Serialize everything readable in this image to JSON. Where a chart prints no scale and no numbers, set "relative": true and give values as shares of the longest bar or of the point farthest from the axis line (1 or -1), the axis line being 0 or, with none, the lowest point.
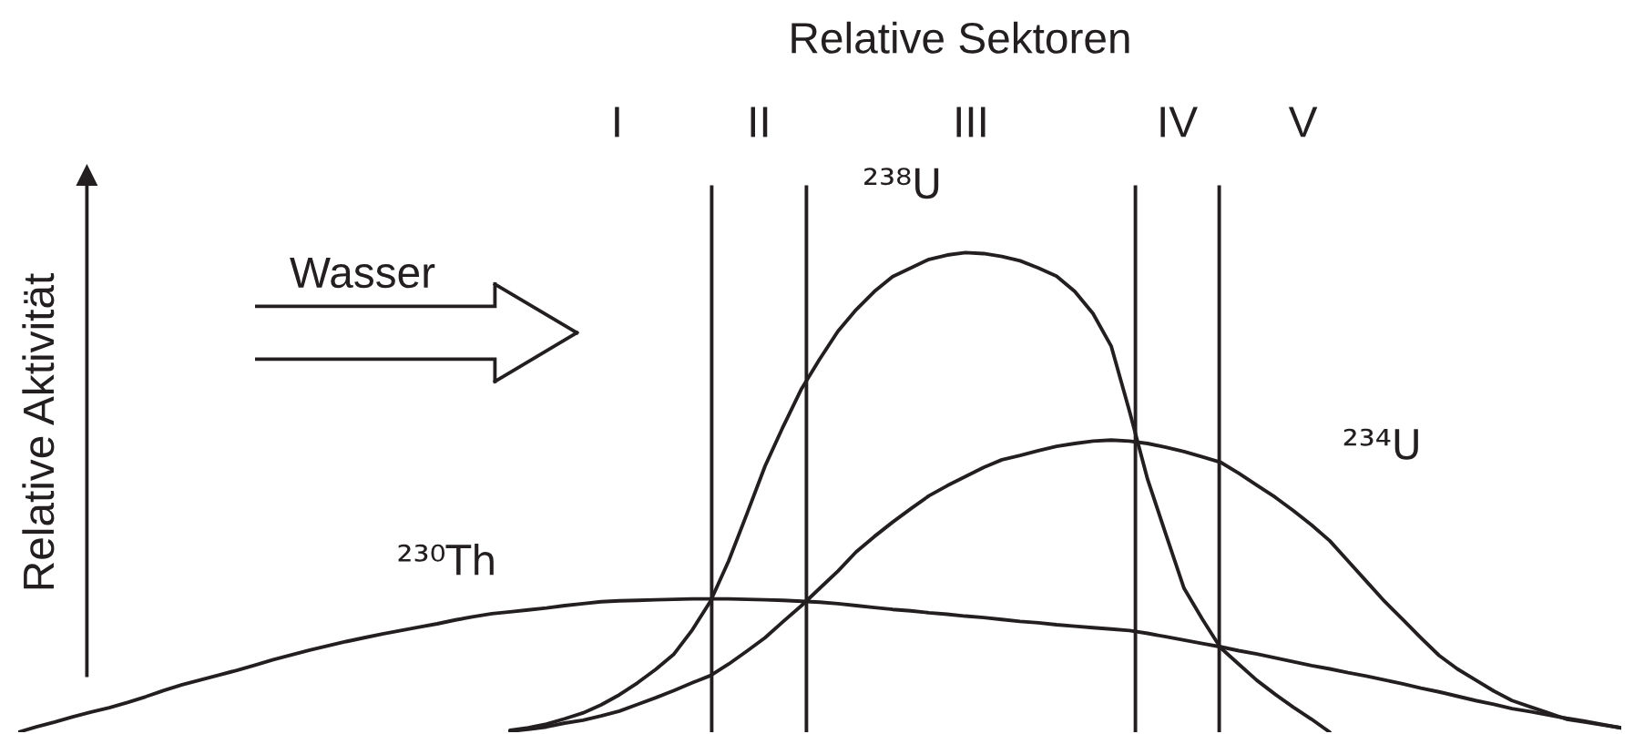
{
  "chart_data": {
    "type": "line",
    "title": "Relative Sektoren",
    "ylabel": "Relative Aktivität",
    "relative": true,
    "categories": [
      null,
      null,
      null,
      null,
      null,
      null,
      null,
      null,
      null,
      null,
      null,
      null,
      null,
      null,
      null,
      null,
      null,
      null,
      null,
      null,
      null,
      null,
      null,
      null,
      null,
      null,
      null,
      null,
      null,
      null,
      null,
      null,
      null,
      null,
      null,
      null,
      null,
      null,
      null,
      null,
      null,
      null,
      null,
      null,
      null,
      null,
      null,
      null,
      null,
      null,
      null,
      null,
      null,
      null,
      null,
      null,
      null,
      null,
      null,
      null,
      null,
      null,
      null,
      null,
      null,
      null,
      null,
      null,
      null,
      null,
      null,
      null,
      null,
      null,
      null,
      null,
      null,
      null,
      null,
      null,
      null,
      null,
      null,
      null,
      null,
      null,
      null,
      null,
      null
    ],
    "series": [
      {
        "name": "²³⁸U",
        "color": "#231f20",
        "values": [
          null,
          null,
          null,
          null,
          null,
          null,
          null,
          null,
          null,
          null,
          null,
          null,
          null,
          null,
          null,
          null,
          null,
          null,
          null,
          null,
          null,
          null,
          null,
          null,
          null,
          null,
          null,
          0.004,
          0.009,
          0.017,
          0.028,
          0.04,
          0.057,
          0.078,
          0.103,
          0.131,
          0.163,
          0.213,
          0.273,
          0.357,
          0.455,
          0.555,
          0.638,
          0.716,
          0.778,
          0.836,
          0.881,
          0.919,
          0.95,
          0.968,
          0.986,
          0.995,
          1.0,
          0.998,
          0.992,
          0.983,
          0.968,
          0.951,
          0.919,
          0.873,
          0.805,
          0.67,
          0.527,
          0.413,
          0.3,
          0.236,
          0.176,
          0.142,
          0.108,
          0.079,
          0.052,
          0.027,
          0.0,
          null,
          null,
          null,
          null,
          null,
          null,
          null,
          null,
          null,
          null,
          null,
          null,
          null,
          null,
          null,
          null
        ]
      },
      {
        "name": "²³⁴U",
        "color": "#231f20",
        "values": [
          null,
          null,
          null,
          null,
          null,
          null,
          null,
          null,
          null,
          null,
          null,
          null,
          null,
          null,
          null,
          null,
          null,
          null,
          null,
          null,
          null,
          null,
          null,
          null,
          null,
          null,
          null,
          0.002,
          0.006,
          0.011,
          0.019,
          0.025,
          0.034,
          0.044,
          0.058,
          0.072,
          0.087,
          0.103,
          0.118,
          0.142,
          0.169,
          0.197,
          0.231,
          0.264,
          0.3,
          0.336,
          0.376,
          0.408,
          0.438,
          0.466,
          0.493,
          0.514,
          0.533,
          0.552,
          0.568,
          0.577,
          0.587,
          0.596,
          0.602,
          0.607,
          0.609,
          0.607,
          0.602,
          0.594,
          0.585,
          0.574,
          0.563,
          0.54,
          0.515,
          0.49,
          0.462,
          0.432,
          0.399,
          0.357,
          0.315,
          0.273,
          0.235,
          0.197,
          0.16,
          0.132,
          0.109,
          0.086,
          0.066,
          0.053,
          0.04,
          0.027,
          0.021,
          0.015,
          0.009
        ]
      },
      {
        "name": "²³⁰Th",
        "color": "#231f20",
        "values": [
          0.0,
          0.011,
          0.021,
          0.032,
          0.042,
          0.051,
          0.062,
          0.074,
          0.087,
          0.099,
          0.109,
          0.119,
          0.129,
          0.14,
          0.151,
          0.161,
          0.171,
          0.18,
          0.189,
          0.197,
          0.205,
          0.212,
          0.219,
          0.226,
          0.234,
          0.241,
          0.247,
          0.251,
          0.255,
          0.259,
          0.264,
          0.268,
          0.272,
          0.274,
          0.275,
          0.276,
          0.277,
          0.278,
          0.278,
          0.278,
          0.277,
          0.276,
          0.275,
          0.273,
          0.271,
          0.268,
          0.264,
          0.26,
          0.256,
          0.253,
          0.249,
          0.246,
          0.242,
          0.239,
          0.235,
          0.231,
          0.228,
          0.224,
          0.221,
          0.218,
          0.215,
          0.212,
          0.206,
          0.199,
          0.192,
          0.185,
          0.178,
          0.17,
          0.163,
          0.155,
          0.147,
          0.139,
          0.132,
          0.124,
          0.117,
          0.109,
          0.101,
          0.092,
          0.084,
          0.075,
          0.066,
          0.058,
          0.049,
          0.043,
          0.036,
          0.029,
          0.023,
          0.016,
          0.009
        ]
      }
    ],
    "annotations": [
      "I",
      "II",
      "III",
      "IV",
      "V",
      "Wasser"
    ]
  }
}
